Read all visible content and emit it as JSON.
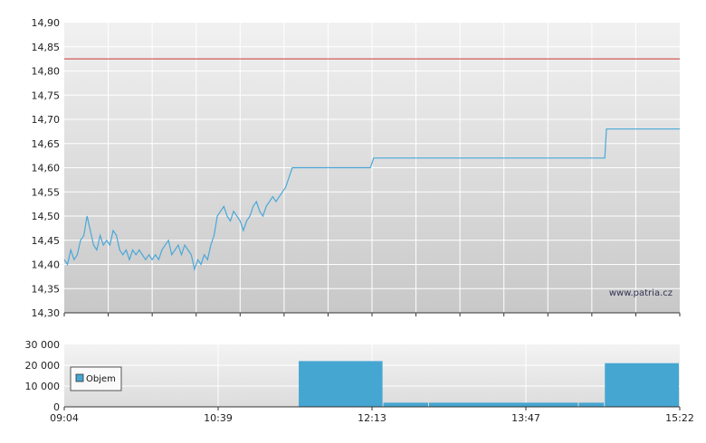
{
  "watermark": "www.patria.cz",
  "colors": {
    "price_line": "#4aa8d8",
    "reference_line": "#cc3333",
    "volume_bars": "#45a6d2"
  },
  "chart_data": [
    {
      "type": "line",
      "title": "",
      "xlabel": "",
      "ylabel": "",
      "grid": true,
      "ylim": [
        14.3,
        14.9
      ],
      "y_ticks": [
        "14,90",
        "14,85",
        "14,80",
        "14,75",
        "14,70",
        "14,65",
        "14,60",
        "14,55",
        "14,50",
        "14,45",
        "14,40",
        "14,35",
        "14,30"
      ],
      "x_range_minutes": [
        544,
        922
      ],
      "reference_line": 14.825,
      "series": [
        {
          "x": [
            544,
            546,
            548,
            550,
            552,
            554,
            556,
            558,
            560,
            562,
            564,
            566,
            568,
            570,
            572,
            574,
            576,
            578,
            580,
            582,
            584,
            586,
            588,
            590,
            592,
            594,
            596,
            598,
            600,
            602,
            604,
            606,
            608,
            610,
            612,
            614,
            616,
            618,
            620,
            622,
            624,
            626,
            628,
            630,
            632,
            634,
            636,
            638,
            640,
            642,
            644,
            646,
            648,
            650,
            652,
            654,
            656,
            658,
            660,
            662,
            664,
            666,
            668,
            670,
            672,
            674,
            676,
            678,
            680,
            682,
            684,
            686,
            688,
            690,
            692,
            694,
            696,
            698,
            700,
            702,
            704,
            706,
            708,
            710,
            712,
            714,
            716,
            718,
            720,
            722,
            724,
            726,
            728,
            730,
            732,
            734,
            736,
            738,
            740,
            742,
            744,
            746,
            748,
            750,
            752,
            754,
            756,
            758,
            760,
            762,
            764,
            766,
            768,
            770,
            772,
            774,
            776,
            780,
            786,
            790,
            800,
            812,
            820,
            830,
            842,
            850,
            860,
            872,
            876,
            877,
            890,
            900,
            910,
            920,
            922
          ],
          "values": [
            14.41,
            14.4,
            14.43,
            14.41,
            14.42,
            14.45,
            14.46,
            14.5,
            14.47,
            14.44,
            14.43,
            14.46,
            14.44,
            14.45,
            14.44,
            14.47,
            14.46,
            14.43,
            14.42,
            14.43,
            14.41,
            14.43,
            14.42,
            14.43,
            14.42,
            14.41,
            14.42,
            14.41,
            14.42,
            14.41,
            14.43,
            14.44,
            14.45,
            14.42,
            14.43,
            14.44,
            14.42,
            14.44,
            14.43,
            14.42,
            14.39,
            14.41,
            14.4,
            14.42,
            14.41,
            14.44,
            14.46,
            14.5,
            14.51,
            14.52,
            14.5,
            14.49,
            14.51,
            14.5,
            14.49,
            14.47,
            14.49,
            14.5,
            14.52,
            14.53,
            14.51,
            14.5,
            14.52,
            14.53,
            14.54,
            14.53,
            14.54,
            14.55,
            14.56,
            14.58,
            14.6,
            14.6,
            14.6,
            14.6,
            14.6,
            14.6,
            14.6,
            14.6,
            14.6,
            14.6,
            14.6,
            14.6,
            14.6,
            14.6,
            14.6,
            14.6,
            14.6,
            14.6,
            14.6,
            14.6,
            14.6,
            14.6,
            14.6,
            14.6,
            14.6,
            14.62,
            14.62,
            14.62,
            14.62,
            14.62,
            14.62,
            14.62,
            14.62,
            14.62,
            14.62,
            14.62,
            14.62,
            14.62,
            14.62,
            14.62,
            14.62,
            14.62,
            14.62,
            14.62,
            14.62,
            14.62,
            14.62,
            14.62,
            14.62,
            14.62,
            14.62,
            14.62,
            14.62,
            14.62,
            14.62,
            14.62,
            14.62,
            14.62,
            14.62,
            14.68,
            14.68,
            14.68,
            14.68,
            14.68,
            14.68
          ]
        }
      ]
    },
    {
      "type": "bar",
      "title": "",
      "xlabel": "",
      "ylabel": "",
      "grid": true,
      "ylim": [
        0,
        30000
      ],
      "y_ticks": [
        "30 000",
        "20 000",
        "10 000",
        "0"
      ],
      "x_tick_labels": [
        "09:04",
        "10:39",
        "12:13",
        "13:47",
        "15:22"
      ],
      "legend": {
        "label": "Objem",
        "placement": "left"
      },
      "series": [
        {
          "name": "Objem",
          "bars": [
            {
              "start": 688,
              "end": 740,
              "value": 22000
            },
            {
              "start": 740,
              "end": 768,
              "value": 2000
            },
            {
              "start": 768,
              "end": 860,
              "value": 2000
            },
            {
              "start": 860,
              "end": 876,
              "value": 2000
            },
            {
              "start": 876,
              "end": 922,
              "value": 21000
            }
          ]
        }
      ]
    }
  ]
}
